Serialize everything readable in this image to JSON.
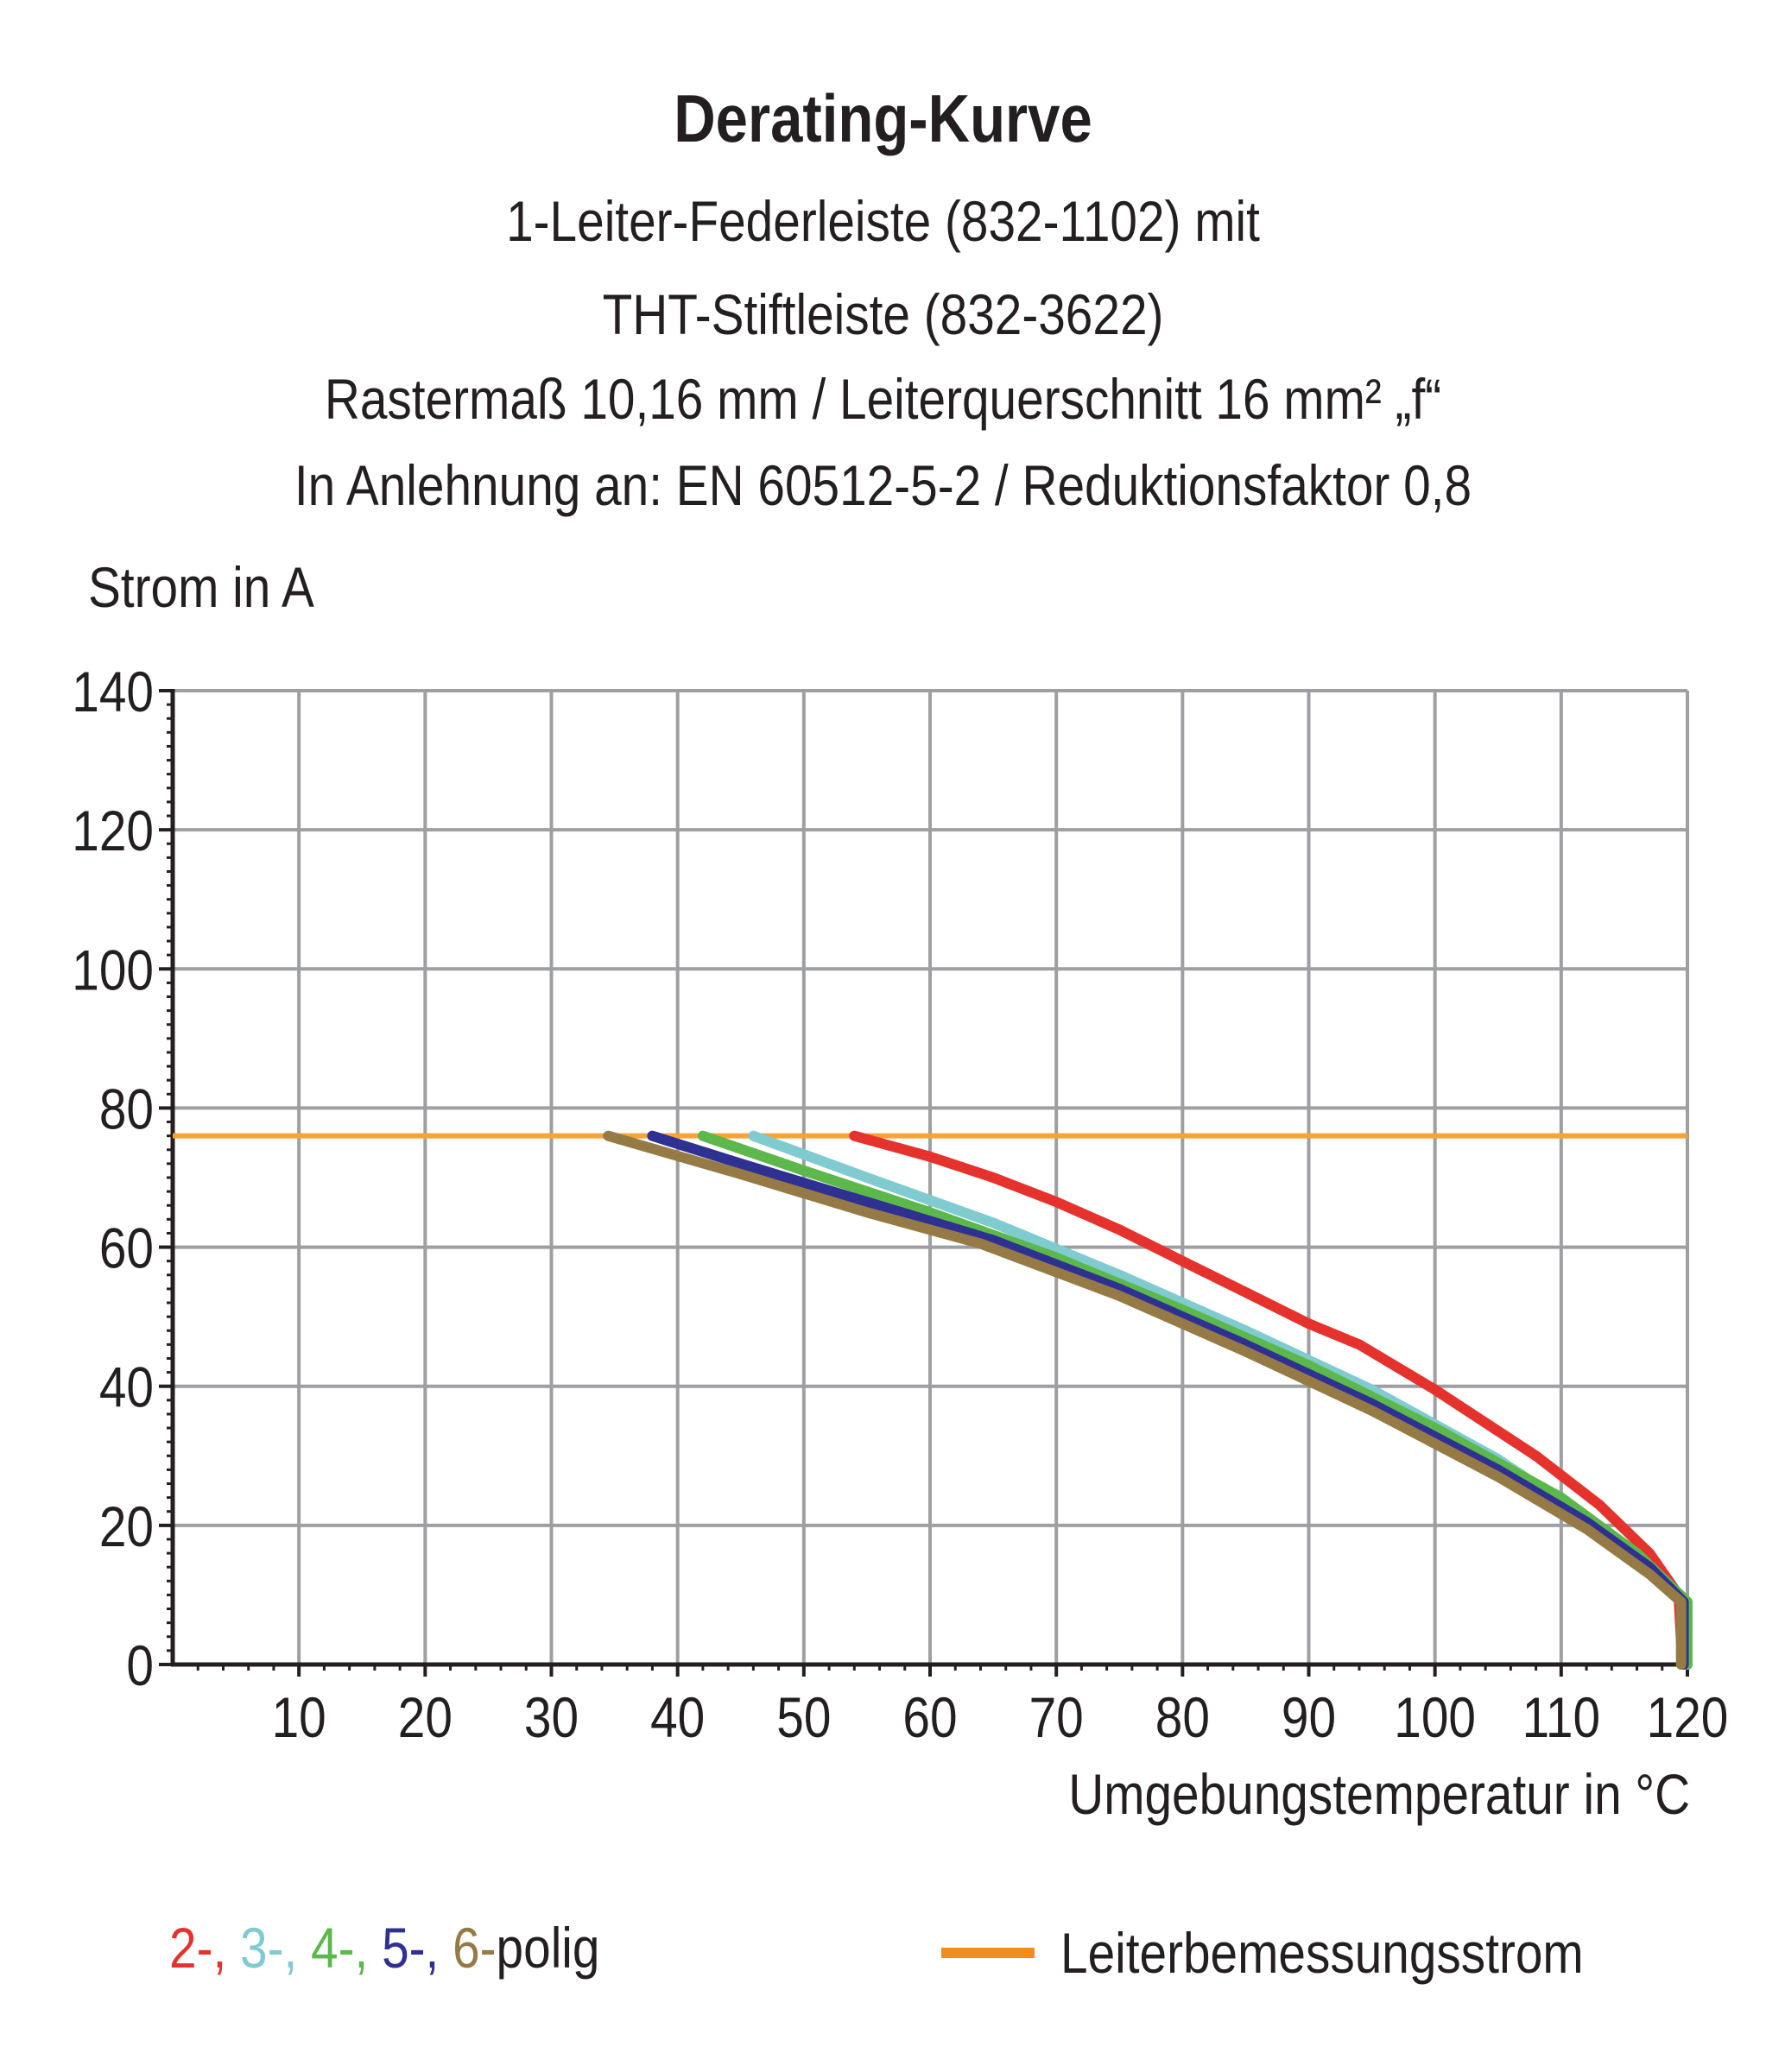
{
  "chart_data": {
    "type": "line",
    "title": "Derating-Kurve",
    "subtitle": [
      "1-Leiter-Federleiste (832-1102) mit",
      "THT-Stiftleiste (832-3622)",
      "Rastermaß 10,16 mm / Leiterquerschnitt 16 mm² „f“",
      "In Anlehnung an: EN 60512-5-2 / Reduktionsfaktor 0,8"
    ],
    "xlabel": "Umgebungstemperatur in °C",
    "ylabel": "Strom in A",
    "xlim": [
      0,
      120
    ],
    "ylim": [
      0,
      140
    ],
    "xticks": [
      10,
      20,
      30,
      40,
      50,
      60,
      70,
      80,
      90,
      100,
      110,
      120
    ],
    "yticks": [
      0,
      20,
      40,
      60,
      80,
      100,
      120,
      140
    ],
    "grid": true,
    "series": [
      {
        "name": "2-",
        "color": "#e5322d",
        "x": [
          54,
          60,
          65,
          70,
          75,
          80,
          85,
          90,
          94,
          100,
          108,
          113,
          117,
          119.3,
          119.6
        ],
        "y": [
          76,
          73,
          70,
          66.5,
          62.5,
          58,
          53.5,
          49,
          46,
          39.5,
          30,
          23,
          16,
          10,
          0
        ]
      },
      {
        "name": "3-",
        "color": "#7fcbd0",
        "x": [
          46,
          55,
          65,
          75,
          85,
          95,
          105,
          112,
          117,
          120,
          120
        ],
        "y": [
          76,
          70,
          63.5,
          56,
          48,
          39.5,
          29.5,
          21,
          14,
          9,
          0
        ]
      },
      {
        "name": "4-",
        "color": "#5cb84a",
        "x": [
          42,
          50,
          60,
          70,
          80,
          90,
          100,
          110,
          116,
          120,
          120
        ],
        "y": [
          76,
          71,
          65,
          58.5,
          51,
          43,
          34,
          24,
          16,
          9,
          0
        ]
      },
      {
        "name": "5-",
        "color": "#2e3192",
        "x": [
          38,
          45,
          55,
          65,
          75,
          85,
          95,
          105,
          112,
          117,
          119.7,
          119.7
        ],
        "y": [
          76,
          72,
          66.5,
          61,
          54,
          46,
          37.5,
          28,
          20.5,
          14,
          9,
          0
        ]
      },
      {
        "name": "6-",
        "color": "#957a46",
        "x": [
          34.5,
          45,
          55,
          64,
          75,
          85,
          95,
          105,
          112,
          117,
          119.5,
          119.5
        ],
        "y": [
          76,
          70.5,
          65,
          60.5,
          53,
          45,
          36.5,
          27,
          19.5,
          13,
          9,
          0
        ]
      }
    ],
    "reference_line": {
      "name": "Leiterbemessungsstrom",
      "y": 76,
      "x": [
        0,
        120
      ],
      "color": "#f7a335"
    },
    "legend": {
      "series_labels": [
        "2-",
        "3-",
        "4-",
        "5-",
        "6-"
      ],
      "series_suffix": "polig",
      "reference_label": "Leiterbemessungsstrom",
      "reference_color": "#f28c1a",
      "placement": "bottom"
    }
  }
}
